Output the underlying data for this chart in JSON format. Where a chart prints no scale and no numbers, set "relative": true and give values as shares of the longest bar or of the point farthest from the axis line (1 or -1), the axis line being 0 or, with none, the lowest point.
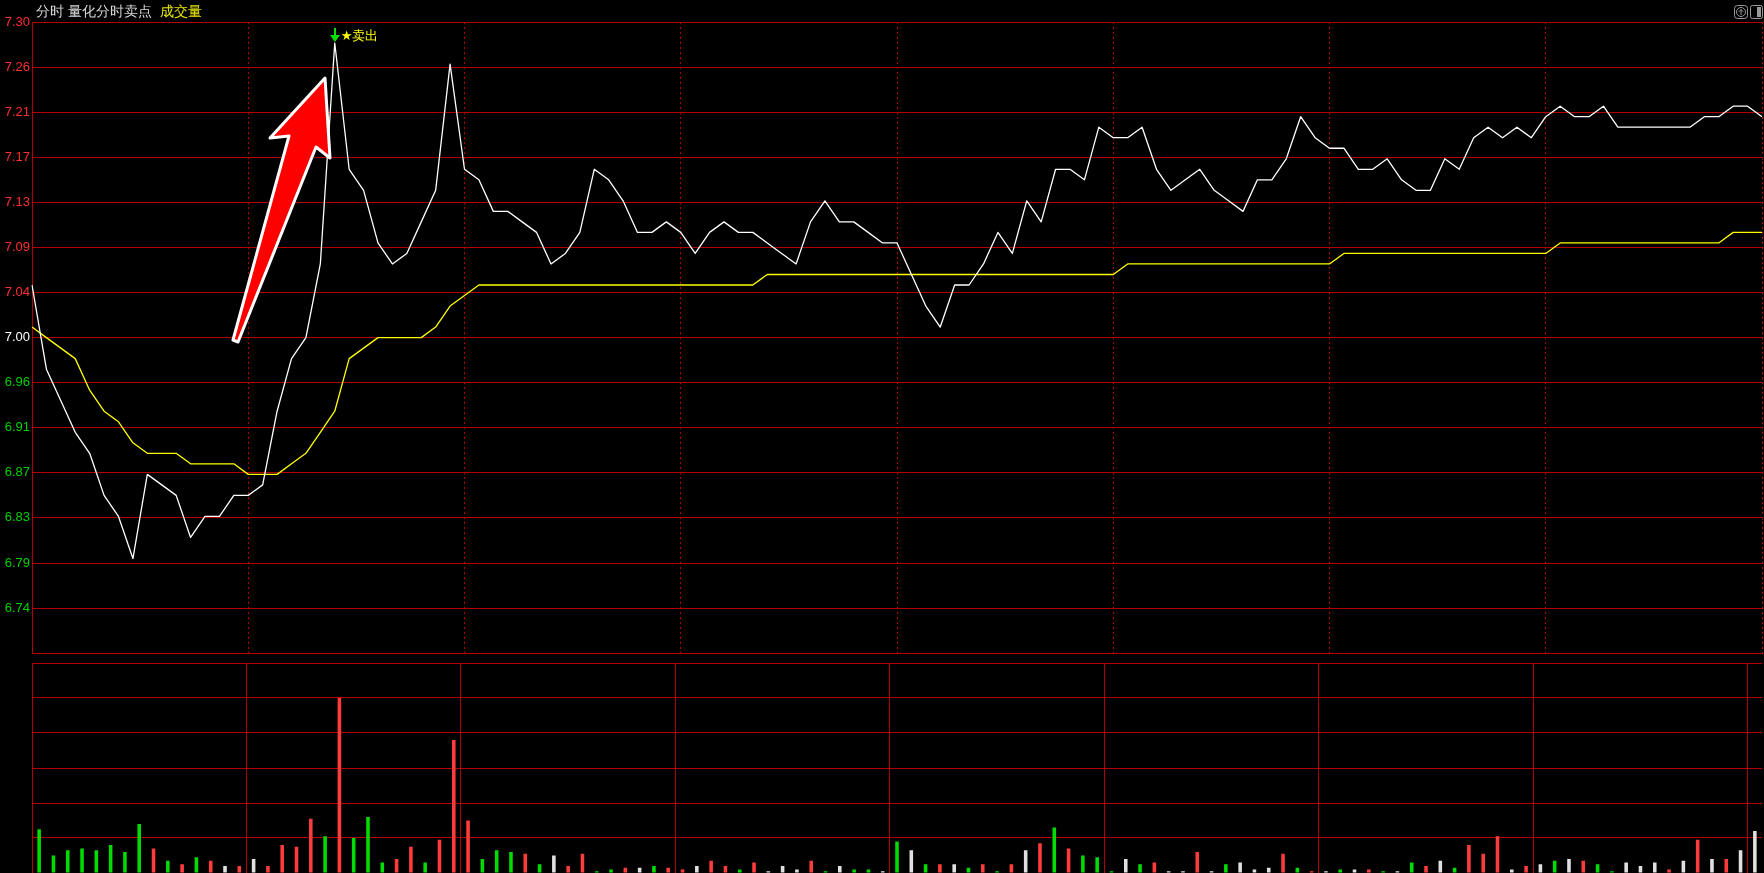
{
  "chart_data": [
    {
      "type": "line",
      "title": "分时 量化分时卖点",
      "categories": [
        null,
        null,
        null,
        null,
        null,
        null,
        null,
        null,
        null,
        null,
        null,
        null,
        null,
        null,
        null,
        null,
        null,
        null,
        null,
        null,
        null,
        null,
        null,
        null,
        null,
        null,
        null,
        null,
        null,
        null,
        null,
        null,
        null,
        null,
        null,
        null,
        null,
        null,
        null,
        null,
        null,
        null,
        null,
        null,
        null,
        null,
        null,
        null,
        null,
        null,
        null,
        null,
        null,
        null,
        null,
        null,
        null,
        null,
        null,
        null,
        null,
        null,
        null,
        null,
        null,
        null,
        null,
        null,
        null,
        null,
        null,
        null,
        null,
        null,
        null,
        null,
        null,
        null,
        null,
        null,
        null,
        null,
        null,
        null,
        null,
        null,
        null,
        null,
        null,
        null,
        null,
        null,
        null,
        null,
        null,
        null,
        null,
        null,
        null,
        null,
        null,
        null,
        null,
        null,
        null,
        null,
        null,
        null,
        null,
        null,
        null,
        null,
        null,
        null,
        null,
        null,
        null,
        null,
        null,
        null,
        null
      ],
      "series": [
        {
          "color": "#ffffff",
          "values": [
            7.05,
            6.97,
            6.94,
            6.91,
            6.89,
            6.85,
            6.83,
            6.79,
            6.87,
            6.86,
            6.85,
            6.81,
            6.83,
            6.83,
            6.85,
            6.85,
            6.86,
            6.93,
            6.98,
            7.0,
            7.07,
            7.28,
            7.16,
            7.14,
            7.09,
            7.07,
            7.08,
            7.11,
            7.14,
            7.26,
            7.16,
            7.15,
            7.12,
            7.12,
            7.11,
            7.1,
            7.07,
            7.08,
            7.1,
            7.16,
            7.15,
            7.13,
            7.1,
            7.1,
            7.11,
            7.1,
            7.08,
            7.1,
            7.11,
            7.1,
            7.1,
            7.09,
            7.08,
            7.07,
            7.11,
            7.13,
            7.11,
            7.11,
            7.1,
            7.09,
            7.09,
            7.06,
            7.03,
            7.01,
            7.05,
            7.05,
            7.07,
            7.1,
            7.08,
            7.13,
            7.11,
            7.16,
            7.16,
            7.15,
            7.2,
            7.19,
            7.19,
            7.2,
            7.16,
            7.14,
            7.15,
            7.16,
            7.14,
            7.13,
            7.12,
            7.15,
            7.15,
            7.17,
            7.21,
            7.19,
            7.18,
            7.18,
            7.16,
            7.16,
            7.17,
            7.15,
            7.14,
            7.14,
            7.17,
            7.16,
            7.19,
            7.2,
            7.19,
            7.2,
            7.19,
            7.21,
            7.22,
            7.21,
            7.21,
            7.22,
            7.2,
            7.2,
            7.2,
            7.2,
            7.2,
            7.2,
            7.21,
            7.21,
            7.22,
            7.22,
            7.21
          ]
        },
        {
          "color": "#ffff00",
          "values": [
            7.01,
            7.0,
            6.99,
            6.98,
            6.95,
            6.93,
            6.92,
            6.9,
            6.89,
            6.89,
            6.89,
            6.88,
            6.88,
            6.88,
            6.88,
            6.87,
            6.87,
            6.87,
            6.88,
            6.89,
            6.91,
            6.93,
            6.98,
            6.99,
            7.0,
            7.0,
            7.0,
            7.0,
            7.01,
            7.03,
            7.04,
            7.05,
            7.05,
            7.05,
            7.05,
            7.05,
            7.05,
            7.05,
            7.05,
            7.05,
            7.05,
            7.05,
            7.05,
            7.05,
            7.05,
            7.05,
            7.05,
            7.05,
            7.05,
            7.05,
            7.05,
            7.06,
            7.06,
            7.06,
            7.06,
            7.06,
            7.06,
            7.06,
            7.06,
            7.06,
            7.06,
            7.06,
            7.06,
            7.06,
            7.06,
            7.06,
            7.06,
            7.06,
            7.06,
            7.06,
            7.06,
            7.06,
            7.06,
            7.06,
            7.06,
            7.06,
            7.07,
            7.07,
            7.07,
            7.07,
            7.07,
            7.07,
            7.07,
            7.07,
            7.07,
            7.07,
            7.07,
            7.07,
            7.07,
            7.07,
            7.07,
            7.08,
            7.08,
            7.08,
            7.08,
            7.08,
            7.08,
            7.08,
            7.08,
            7.08,
            7.08,
            7.08,
            7.08,
            7.08,
            7.08,
            7.08,
            7.09,
            7.09,
            7.09,
            7.09,
            7.09,
            7.09,
            7.09,
            7.09,
            7.09,
            7.09,
            7.09,
            7.09,
            7.1,
            7.1,
            7.1
          ]
        }
      ],
      "ylim": [
        6.7,
        7.3
      ],
      "yticks": [
        {
          "value": 7.3,
          "label": "7.30"
        },
        {
          "value": 7.2571,
          "label": "7.26"
        },
        {
          "value": 7.2143,
          "label": "7.21"
        },
        {
          "value": 7.1714,
          "label": "7.17"
        },
        {
          "value": 7.1286,
          "label": "7.13"
        },
        {
          "value": 7.0857,
          "label": "7.09"
        },
        {
          "value": 7.0429,
          "label": "7.04"
        },
        {
          "value": 7.0,
          "label": "7.00"
        },
        {
          "value": 6.9571,
          "label": "6.96"
        },
        {
          "value": 6.9143,
          "label": "6.91"
        },
        {
          "value": 6.8714,
          "label": "6.87"
        },
        {
          "value": 6.8286,
          "label": "6.83"
        },
        {
          "value": 6.7857,
          "label": "6.79"
        },
        {
          "value": 6.7429,
          "label": "6.74"
        }
      ],
      "grid": true,
      "subtitle": "成交量",
      "annotations": [
        "★卖出"
      ]
    },
    {
      "type": "bar",
      "relative": true,
      "grid": true,
      "categories": [
        null,
        null,
        null,
        null,
        null,
        null,
        null,
        null,
        null,
        null,
        null,
        null,
        null,
        null,
        null,
        null,
        null,
        null,
        null,
        null,
        null,
        null,
        null,
        null,
        null,
        null,
        null,
        null,
        null,
        null,
        null,
        null,
        null,
        null,
        null,
        null,
        null,
        null,
        null,
        null,
        null,
        null,
        null,
        null,
        null,
        null,
        null,
        null,
        null,
        null,
        null,
        null,
        null,
        null,
        null,
        null,
        null,
        null,
        null,
        null,
        null,
        null,
        null,
        null,
        null,
        null,
        null,
        null,
        null,
        null,
        null,
        null,
        null,
        null,
        null,
        null,
        null,
        null,
        null,
        null,
        null,
        null,
        null,
        null,
        null,
        null,
        null,
        null,
        null,
        null,
        null,
        null,
        null,
        null,
        null,
        null,
        null,
        null,
        null,
        null,
        null,
        null,
        null,
        null,
        null,
        null,
        null,
        null,
        null,
        null,
        null,
        null,
        null,
        null,
        null,
        null,
        null,
        null,
        null,
        null,
        null
      ],
      "values": [
        0.25,
        0.1,
        0.13,
        0.14,
        0.13,
        0.16,
        0.12,
        0.28,
        0.14,
        0.07,
        0.05,
        0.09,
        0.07,
        0.04,
        0.04,
        0.08,
        0.04,
        0.16,
        0.15,
        0.31,
        0.21,
        1,
        0.2,
        0.32,
        0.06,
        0.08,
        0.15,
        0.06,
        0.19,
        0.76,
        0.3,
        0.08,
        0.13,
        0.12,
        0.11,
        0.05,
        0.1,
        0.04,
        0.11,
        0.01,
        0.02,
        0.03,
        0.03,
        0.04,
        0.03,
        0.02,
        0.04,
        0.07,
        0.04,
        0.02,
        0.06,
        0.01,
        0.04,
        0.02,
        0.07,
        0.01,
        0.04,
        0.02,
        0.02,
        0.01,
        0.18,
        0.13,
        0.05,
        0.05,
        0.05,
        0.03,
        0.05,
        0.01,
        0.05,
        0.13,
        0.17,
        0.26,
        0.14,
        0.1,
        0.09,
        0.01,
        0.08,
        0.05,
        0.06,
        0.01,
        0.01,
        0.12,
        0.01,
        0.05,
        0.06,
        0.02,
        0.03,
        0.11,
        0.03,
        0.01,
        0.01,
        0.02,
        0.02,
        0.02,
        0.01,
        0.01,
        0.06,
        0.04,
        0.07,
        0.03,
        0.16,
        0.11,
        0.21,
        0.02,
        0.04,
        0.05,
        0.07,
        0.08,
        0.07,
        0.05,
        0.01,
        0.06,
        0.04,
        0.06,
        0.02,
        0.07,
        0.19,
        0.08,
        0.08,
        0.13,
        0.24
      ],
      "colors": [
        "#00dc00",
        "#00dc00",
        "#00dc00",
        "#00dc00",
        "#00dc00",
        "#00dc00",
        "#00dc00",
        "#00dc00",
        "#ff3c3c",
        "#00dc00",
        "#ff3c3c",
        "#00dc00",
        "#ff3c3c",
        "#e0e0e0",
        "#ff3c3c",
        "#e0e0e0",
        "#ff3c3c",
        "#ff3c3c",
        "#ff3c3c",
        "#ff3c3c",
        "#00dc00",
        "#ff3c3c",
        "#00dc00",
        "#00dc00",
        "#00dc00",
        "#ff3c3c",
        "#ff3c3c",
        "#00dc00",
        "#ff3c3c",
        "#ff3c3c",
        "#ff3c3c",
        "#00dc00",
        "#00dc00",
        "#00dc00",
        "#ff3c3c",
        "#00dc00",
        "#e0e0e0",
        "#ff3c3c",
        "#ff3c3c",
        "#00dc00",
        "#00dc00",
        "#ff3c3c",
        "#e0e0e0",
        "#00dc00",
        "#ff3c3c",
        "#ff3c3c",
        "#e0e0e0",
        "#ff3c3c",
        "#ff3c3c",
        "#00dc00",
        "#ff3c3c",
        "#e0e0e0",
        "#e0e0e0",
        "#e0e0e0",
        "#ff3c3c",
        "#00dc00",
        "#e0e0e0",
        "#00dc00",
        "#00dc00",
        "#e0e0e0",
        "#00dc00",
        "#e0e0e0",
        "#00dc00",
        "#ff3c3c",
        "#e0e0e0",
        "#00dc00",
        "#ff3c3c",
        "#00dc00",
        "#ff3c3c",
        "#e0e0e0",
        "#ff3c3c",
        "#00dc00",
        "#ff3c3c",
        "#00dc00",
        "#00dc00",
        "#00dc00",
        "#e0e0e0",
        "#00dc00",
        "#ff3c3c",
        "#e0e0e0",
        "#e0e0e0",
        "#ff3c3c",
        "#e0e0e0",
        "#00dc00",
        "#e0e0e0",
        "#e0e0e0",
        "#e0e0e0",
        "#ff3c3c",
        "#00dc00",
        "#ff3c3c",
        "#e0e0e0",
        "#00dc00",
        "#e0e0e0",
        "#ff3c3c",
        "#00dc00",
        "#e0e0e0",
        "#00dc00",
        "#ff3c3c",
        "#e0e0e0",
        "#00dc00",
        "#ff3c3c",
        "#ff3c3c",
        "#ff3c3c",
        "#e0e0e0",
        "#ff3c3c",
        "#e0e0e0",
        "#00dc00",
        "#e0e0e0",
        "#ff3c3c",
        "#00dc00",
        "#00dc00",
        "#e0e0e0",
        "#e0e0e0",
        "#e0e0e0",
        "#ff3c3c",
        "#e0e0e0",
        "#ff3c3c",
        "#e0e0e0",
        "#ff3c3c",
        "#e0e0e0",
        "#e0e0e0"
      ]
    }
  ]
}
